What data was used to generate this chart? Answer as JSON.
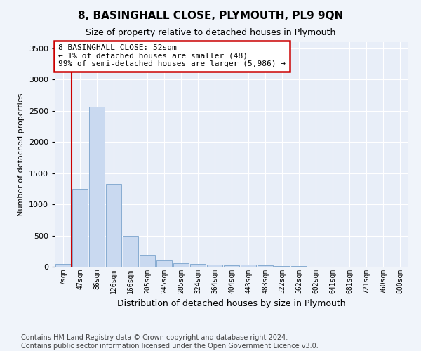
{
  "title": "8, BASINGHALL CLOSE, PLYMOUTH, PL9 9QN",
  "subtitle": "Size of property relative to detached houses in Plymouth",
  "xlabel": "Distribution of detached houses by size in Plymouth",
  "ylabel": "Number of detached properties",
  "bar_labels": [
    "7sqm",
    "47sqm",
    "86sqm",
    "126sqm",
    "166sqm",
    "205sqm",
    "245sqm",
    "285sqm",
    "324sqm",
    "364sqm",
    "404sqm",
    "443sqm",
    "483sqm",
    "522sqm",
    "562sqm",
    "602sqm",
    "641sqm",
    "681sqm",
    "721sqm",
    "760sqm",
    "800sqm"
  ],
  "bar_values": [
    50,
    1250,
    2570,
    1330,
    490,
    195,
    100,
    60,
    45,
    30,
    25,
    30,
    20,
    10,
    8,
    5,
    4,
    3,
    2,
    1,
    1
  ],
  "bar_color": "#c9d9f0",
  "bar_edge_color": "#7aa3cc",
  "vline_color": "#cc0000",
  "ylim": [
    0,
    3600
  ],
  "yticks": [
    0,
    500,
    1000,
    1500,
    2000,
    2500,
    3000,
    3500
  ],
  "annotation_line1": "8 BASINGHALL CLOSE: 52sqm",
  "annotation_line2": "← 1% of detached houses are smaller (48)",
  "annotation_line3": "99% of semi-detached houses are larger (5,986) →",
  "annotation_box_color": "#cc0000",
  "footer_line1": "Contains HM Land Registry data © Crown copyright and database right 2024.",
  "footer_line2": "Contains public sector information licensed under the Open Government Licence v3.0.",
  "fig_bg_color": "#f0f4fa",
  "plot_bg_color": "#e8eef8",
  "title_fontsize": 11,
  "subtitle_fontsize": 9,
  "ylabel_fontsize": 8,
  "xlabel_fontsize": 9,
  "tick_fontsize": 7,
  "annotation_fontsize": 8,
  "footer_fontsize": 7
}
